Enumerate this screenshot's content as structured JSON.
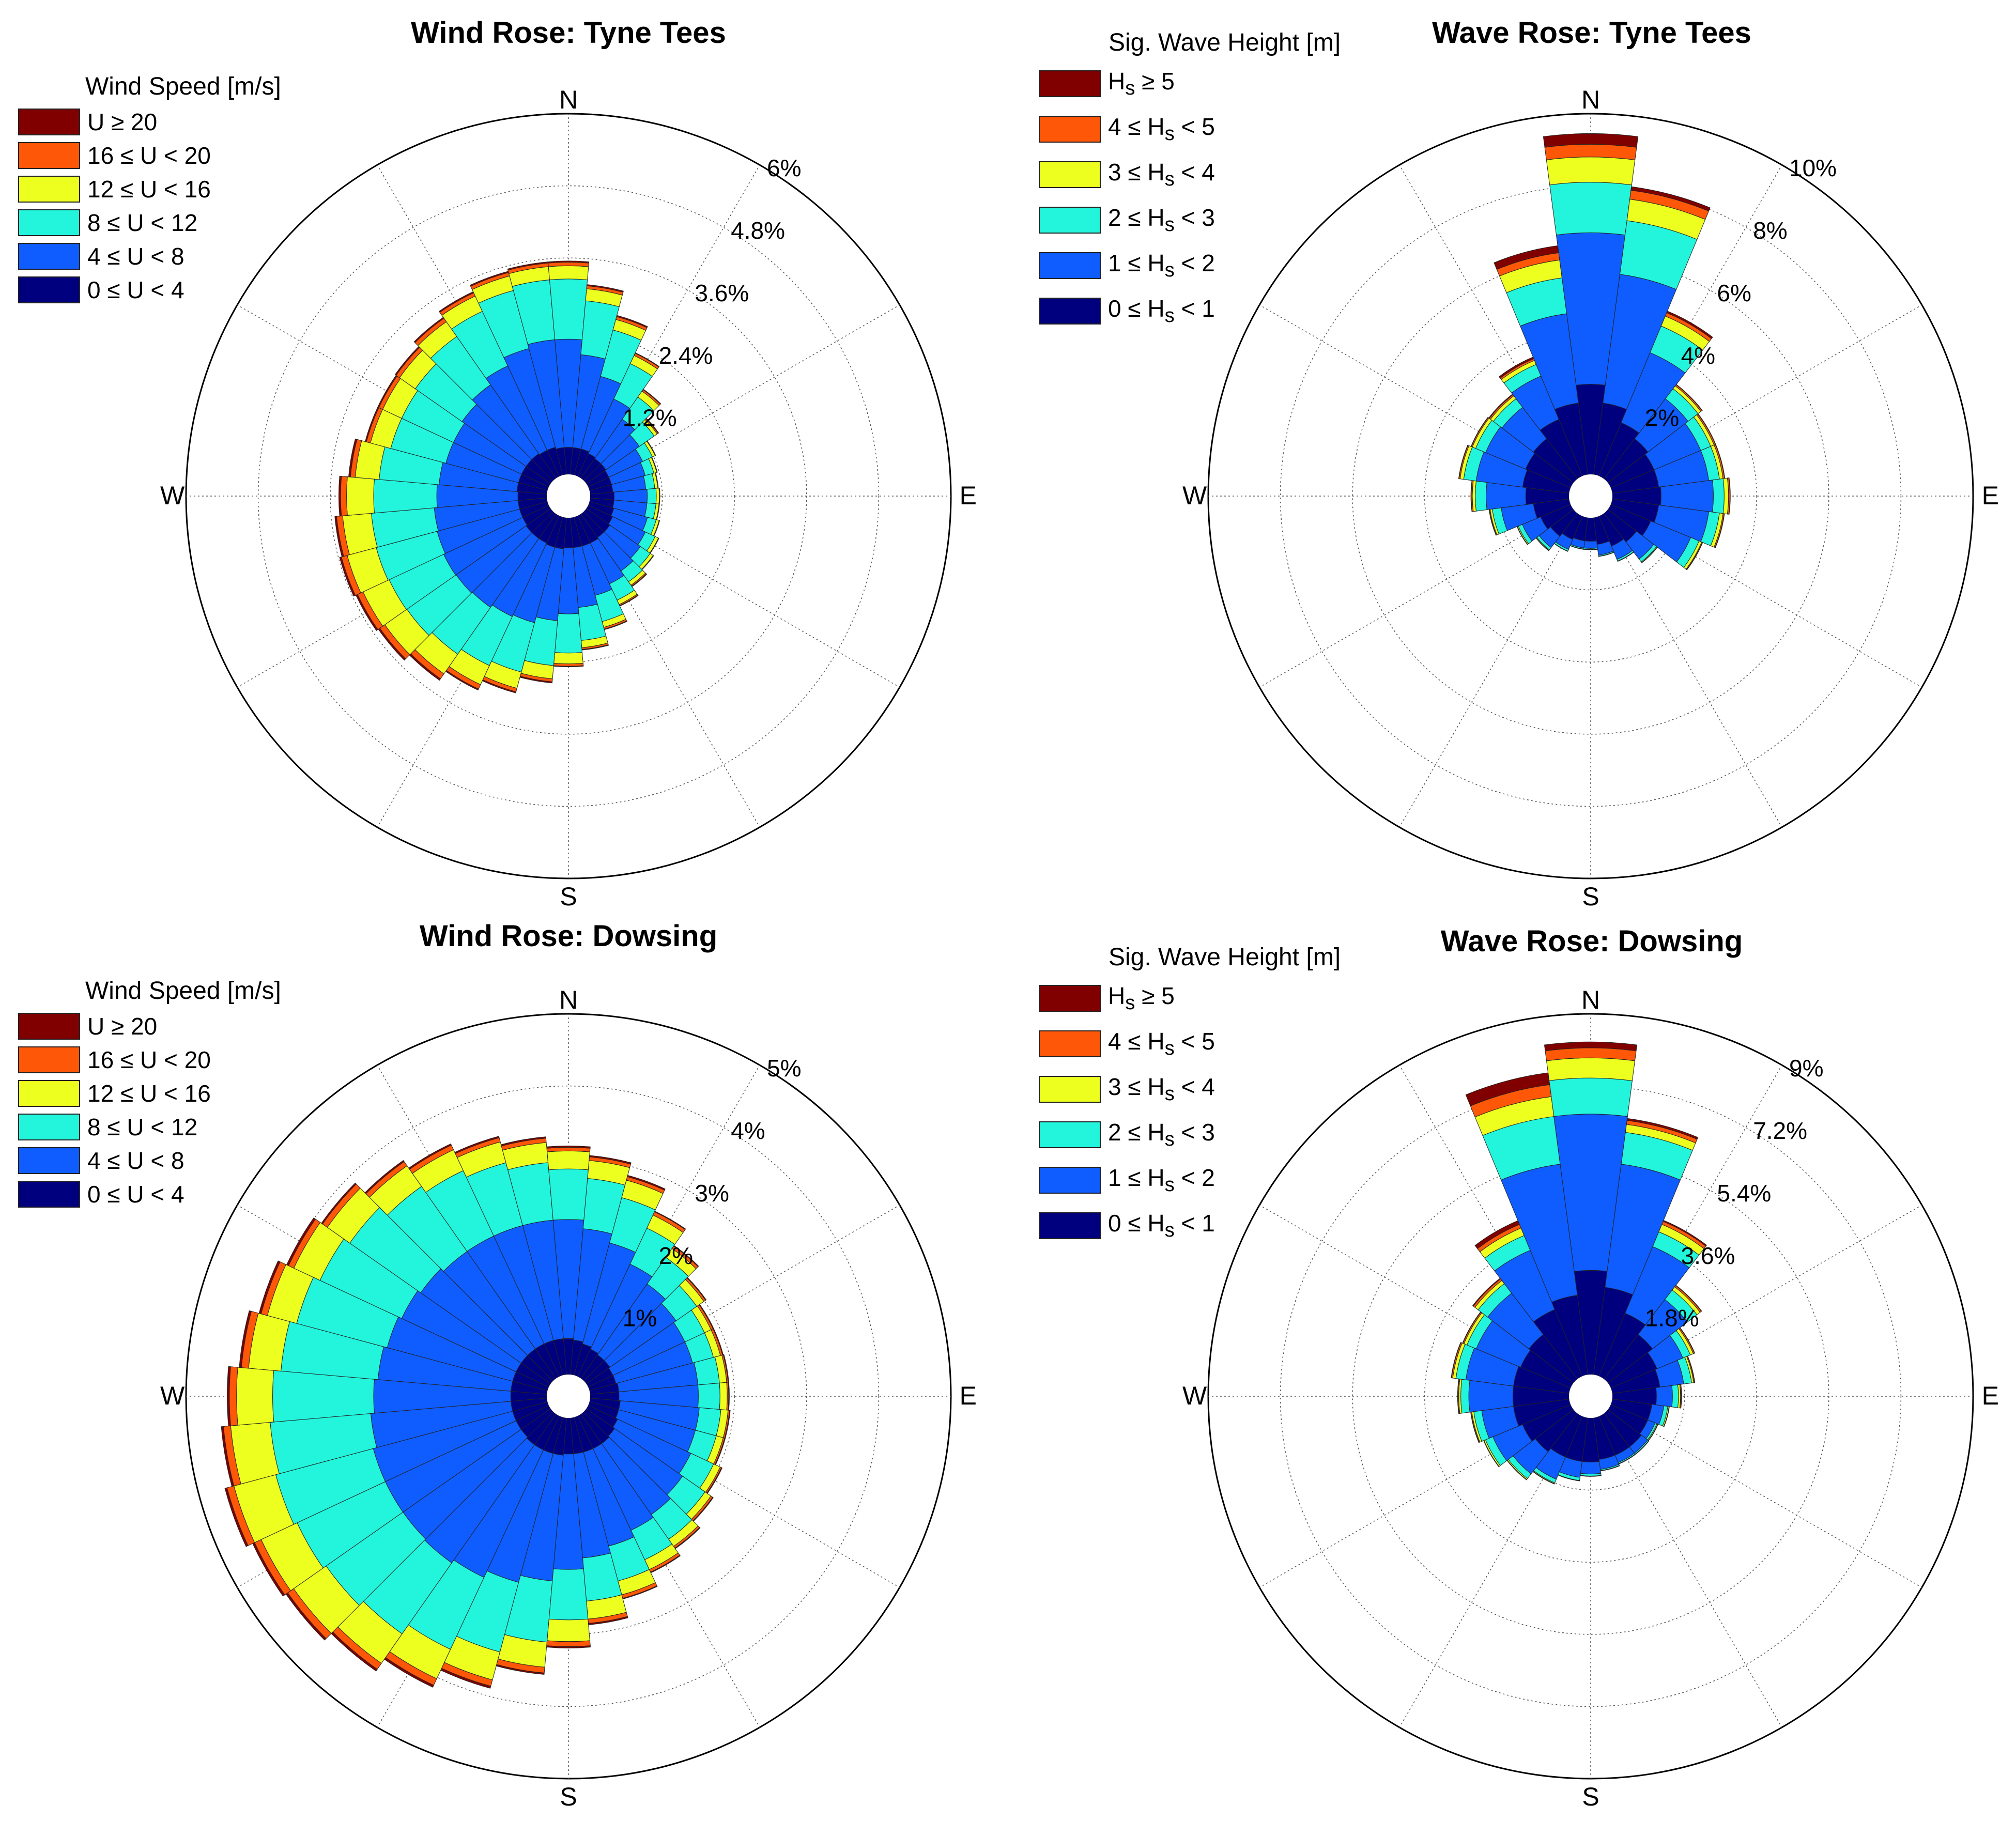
{
  "colors": {
    "bin0": "#00007f",
    "bin1": "#0f5cff",
    "bin2": "#22f5dc",
    "bin3": "#ecff1f",
    "bin4": "#ff5708",
    "bin5": "#800000"
  },
  "chart_data": [
    {
      "type": "wind_rose",
      "title": "Wind Rose: Tyne Tees",
      "legend_title": "Wind Speed [m/s]",
      "legend": [
        "U ≥ 20",
        "16 ≤ U < 20",
        "12 ≤ U < 16",
        "8 ≤ U < 12",
        "4 ≤ U < 8",
        "0 ≤ U < 4"
      ],
      "directions": [
        "N",
        "E",
        "S",
        "W"
      ],
      "ring_labels": [
        "1.2%",
        "2.4%",
        "3.6%",
        "4.8%",
        "6%"
      ],
      "rmax": 6,
      "sectors": 36,
      "series": [
        {
          "name": "0 ≤ U < 4",
          "values": [
            0.45,
            0.45,
            0.45,
            0.42,
            0.4,
            0.4,
            0.38,
            0.38,
            0.38,
            0.4,
            0.4,
            0.42,
            0.45,
            0.48,
            0.48,
            0.5,
            0.5,
            0.5,
            0.5,
            0.52,
            0.52,
            0.5,
            0.5,
            0.5,
            0.48,
            0.48,
            0.48,
            0.48,
            0.5,
            0.5,
            0.5,
            0.5,
            0.5,
            0.48,
            0.48,
            0.45
          ]
        },
        {
          "name": "4 ≤ U < 8",
          "values": [
            1.8,
            1.55,
            1.25,
            1.0,
            0.8,
            0.68,
            0.62,
            0.58,
            0.55,
            0.55,
            0.55,
            0.58,
            0.6,
            0.62,
            0.68,
            0.75,
            0.85,
            1.0,
            1.1,
            1.2,
            1.3,
            1.35,
            1.4,
            1.42,
            1.45,
            1.42,
            1.4,
            1.35,
            1.3,
            1.25,
            1.25,
            1.3,
            1.4,
            1.55,
            1.7,
            1.8
          ]
        },
        {
          "name": "8 ≤ U < 12",
          "values": [
            1.0,
            0.9,
            0.8,
            0.65,
            0.45,
            0.3,
            0.18,
            0.15,
            0.15,
            0.15,
            0.15,
            0.15,
            0.18,
            0.2,
            0.22,
            0.3,
            0.45,
            0.55,
            0.65,
            0.75,
            0.85,
            0.9,
            0.95,
            1.0,
            1.0,
            1.05,
            1.05,
            1.05,
            1.0,
            0.95,
            0.95,
            0.95,
            0.98,
            1.0,
            1.0,
            1.0
          ]
        },
        {
          "name": "12 ≤ U < 16",
          "values": [
            0.22,
            0.2,
            0.18,
            0.15,
            0.12,
            0.06,
            0.05,
            0.05,
            0.05,
            0.05,
            0.05,
            0.05,
            0.06,
            0.06,
            0.07,
            0.08,
            0.1,
            0.12,
            0.18,
            0.22,
            0.28,
            0.35,
            0.4,
            0.45,
            0.48,
            0.5,
            0.48,
            0.45,
            0.4,
            0.35,
            0.35,
            0.32,
            0.3,
            0.28,
            0.25,
            0.22
          ]
        },
        {
          "name": "16 ≤ U < 20",
          "values": [
            0.06,
            0.05,
            0.05,
            0.04,
            0.03,
            0.02,
            0.01,
            0.01,
            0.01,
            0.01,
            0.01,
            0.01,
            0.01,
            0.01,
            0.02,
            0.02,
            0.03,
            0.03,
            0.04,
            0.05,
            0.06,
            0.08,
            0.1,
            0.1,
            0.1,
            0.1,
            0.1,
            0.1,
            0.08,
            0.07,
            0.07,
            0.07,
            0.07,
            0.06,
            0.06,
            0.06
          ]
        },
        {
          "name": "U ≥ 20",
          "values": [
            0.02,
            0.02,
            0.02,
            0.01,
            0.01,
            0.01,
            0.0,
            0.0,
            0.0,
            0.0,
            0.0,
            0.0,
            0.0,
            0.0,
            0.01,
            0.01,
            0.01,
            0.01,
            0.01,
            0.02,
            0.02,
            0.02,
            0.03,
            0.03,
            0.03,
            0.03,
            0.03,
            0.03,
            0.03,
            0.02,
            0.02,
            0.02,
            0.02,
            0.02,
            0.02,
            0.02
          ]
        }
      ]
    },
    {
      "type": "wave_rose",
      "title": "Wave Rose: Tyne Tees",
      "legend_title": "Sig. Wave Height [m]",
      "legend": [
        {
          "pre": "H",
          "sub": "s",
          "post": " ≥ 5"
        },
        {
          "pre": "4 ≤ H",
          "sub": "s",
          "post": " < 5"
        },
        {
          "pre": "3 ≤ H",
          "sub": "s",
          "post": " < 4"
        },
        {
          "pre": "2 ≤ H",
          "sub": "s",
          "post": " < 3"
        },
        {
          "pre": "1 ≤ H",
          "sub": "s",
          "post": " < 2"
        },
        {
          "pre": "0 ≤ H",
          "sub": "s",
          "post": " < 1"
        }
      ],
      "directions": [
        "N",
        "E",
        "S",
        "W"
      ],
      "ring_labels": [
        "2%",
        "4%",
        "6%",
        "8%",
        "10%"
      ],
      "rmax": 10,
      "sectors": 24,
      "series": [
        {
          "name": "0 ≤ Hs < 1",
          "values": [
            2.5,
            2.0,
            1.6,
            1.4,
            1.3,
            1.3,
            1.35,
            1.3,
            1.2,
            1.0,
            0.9,
            0.75,
            0.65,
            0.65,
            0.7,
            0.8,
            0.9,
            1.0,
            1.2,
            1.3,
            1.35,
            1.4,
            1.7,
            2.0
          ]
        },
        {
          "name": "1 ≤ Hs < 2",
          "values": [
            4.2,
            3.6,
            2.1,
            1.4,
            1.4,
            1.4,
            1.45,
            1.4,
            1.2,
            0.6,
            0.4,
            0.3,
            0.2,
            0.2,
            0.3,
            0.4,
            0.55,
            0.9,
            1.1,
            1.3,
            1.2,
            1.1,
            1.3,
            2.5
          ]
        },
        {
          "name": "2 ≤ Hs < 3",
          "values": [
            1.4,
            1.5,
            0.8,
            0.35,
            0.3,
            0.3,
            0.3,
            0.3,
            0.25,
            0.1,
            0.05,
            0.03,
            0.03,
            0.03,
            0.05,
            0.08,
            0.12,
            0.25,
            0.3,
            0.35,
            0.3,
            0.3,
            0.35,
            1.0
          ]
        },
        {
          "name": "3 ≤ Hs < 4",
          "values": [
            0.7,
            0.6,
            0.3,
            0.1,
            0.1,
            0.1,
            0.12,
            0.1,
            0.08,
            0.02,
            0.01,
            0.01,
            0.01,
            0.01,
            0.01,
            0.02,
            0.03,
            0.06,
            0.08,
            0.1,
            0.1,
            0.1,
            0.12,
            0.5
          ]
        },
        {
          "name": "4 ≤ Hs < 5",
          "values": [
            0.35,
            0.25,
            0.1,
            0.04,
            0.04,
            0.04,
            0.04,
            0.03,
            0.02,
            0.01,
            0.0,
            0.0,
            0.0,
            0.0,
            0.0,
            0.01,
            0.01,
            0.02,
            0.03,
            0.03,
            0.03,
            0.04,
            0.05,
            0.2
          ]
        },
        {
          "name": "Hs ≥ 5",
          "values": [
            0.3,
            0.1,
            0.05,
            0.01,
            0.01,
            0.01,
            0.01,
            0.01,
            0.01,
            0.0,
            0.0,
            0.0,
            0.0,
            0.0,
            0.0,
            0.0,
            0.0,
            0.01,
            0.01,
            0.01,
            0.01,
            0.02,
            0.05,
            0.2
          ]
        }
      ]
    },
    {
      "type": "wind_rose",
      "title": "Wind Rose: Dowsing",
      "legend_title": "Wind Speed [m/s]",
      "legend": [
        "U ≥ 20",
        "16 ≤ U < 20",
        "12 ≤ U < 16",
        "8 ≤ U < 12",
        "4 ≤ U < 8",
        "0 ≤ U < 4"
      ],
      "directions": [
        "N",
        "E",
        "S",
        "W"
      ],
      "ring_labels": [
        "1%",
        "2%",
        "3%",
        "4%",
        "5%"
      ],
      "rmax": 5,
      "sectors": 36,
      "series": [
        {
          "name": "0 ≤ U < 4",
          "values": [
            0.5,
            0.48,
            0.45,
            0.42,
            0.4,
            0.4,
            0.38,
            0.38,
            0.4,
            0.4,
            0.42,
            0.42,
            0.45,
            0.48,
            0.5,
            0.5,
            0.5,
            0.5,
            0.5,
            0.52,
            0.52,
            0.52,
            0.52,
            0.5,
            0.5,
            0.5,
            0.5,
            0.5,
            0.5,
            0.5,
            0.5,
            0.5,
            0.5,
            0.5,
            0.5,
            0.5
          ]
        },
        {
          "name": "4 ≤ U < 8",
          "values": [
            1.65,
            1.55,
            1.45,
            1.3,
            1.2,
            1.12,
            1.1,
            1.1,
            1.1,
            1.1,
            1.1,
            1.1,
            1.12,
            1.15,
            1.2,
            1.25,
            1.35,
            1.45,
            1.6,
            1.75,
            1.85,
            1.95,
            2.0,
            2.0,
            2.0,
            2.0,
            1.95,
            1.9,
            1.85,
            1.8,
            1.75,
            1.7,
            1.65,
            1.65,
            1.65,
            1.65
          ]
        },
        {
          "name": "8 ≤ U < 12",
          "values": [
            0.7,
            0.7,
            0.65,
            0.55,
            0.45,
            0.35,
            0.3,
            0.3,
            0.3,
            0.3,
            0.3,
            0.3,
            0.35,
            0.38,
            0.42,
            0.45,
            0.5,
            0.6,
            0.7,
            0.85,
            1.0,
            1.1,
            1.2,
            1.3,
            1.35,
            1.4,
            1.4,
            1.4,
            1.35,
            1.3,
            1.25,
            1.2,
            1.1,
            1.0,
            0.9,
            0.8
          ]
        },
        {
          "name": "12 ≤ U < 16",
          "values": [
            0.25,
            0.25,
            0.25,
            0.2,
            0.15,
            0.12,
            0.1,
            0.1,
            0.1,
            0.1,
            0.1,
            0.1,
            0.1,
            0.1,
            0.12,
            0.15,
            0.2,
            0.25,
            0.3,
            0.35,
            0.4,
            0.45,
            0.5,
            0.55,
            0.55,
            0.6,
            0.55,
            0.5,
            0.45,
            0.42,
            0.4,
            0.38,
            0.35,
            0.32,
            0.3,
            0.28
          ]
        },
        {
          "name": "16 ≤ U < 20",
          "values": [
            0.05,
            0.05,
            0.05,
            0.05,
            0.04,
            0.03,
            0.03,
            0.03,
            0.02,
            0.02,
            0.02,
            0.02,
            0.02,
            0.03,
            0.03,
            0.04,
            0.05,
            0.06,
            0.07,
            0.08,
            0.09,
            0.1,
            0.1,
            0.1,
            0.1,
            0.1,
            0.1,
            0.1,
            0.1,
            0.09,
            0.08,
            0.08,
            0.07,
            0.07,
            0.06,
            0.06
          ]
        },
        {
          "name": "U ≥ 20",
          "values": [
            0.02,
            0.02,
            0.02,
            0.01,
            0.01,
            0.01,
            0.01,
            0.01,
            0.01,
            0.01,
            0.01,
            0.01,
            0.01,
            0.01,
            0.01,
            0.01,
            0.01,
            0.02,
            0.02,
            0.02,
            0.03,
            0.03,
            0.03,
            0.03,
            0.03,
            0.03,
            0.03,
            0.03,
            0.03,
            0.03,
            0.03,
            0.02,
            0.02,
            0.02,
            0.02,
            0.02
          ]
        }
      ]
    },
    {
      "type": "wave_rose",
      "title": "Wave Rose: Dowsing",
      "legend_title": "Sig. Wave Height [m]",
      "legend": [
        {
          "pre": "H",
          "sub": "s",
          "post": " ≥ 5"
        },
        {
          "pre": "4 ≤ H",
          "sub": "s",
          "post": " < 5"
        },
        {
          "pre": "3 ≤ H",
          "sub": "s",
          "post": " < 4"
        },
        {
          "pre": "2 ≤ H",
          "sub": "s",
          "post": " < 3"
        },
        {
          "pre": "1 ≤ H",
          "sub": "s",
          "post": " < 2"
        },
        {
          "pre": "0 ≤ H",
          "sub": "s",
          "post": " < 1"
        }
      ],
      "directions": [
        "N",
        "E",
        "S",
        "W"
      ],
      "ring_labels": [
        "1.8%",
        "3.6%",
        "5.4%",
        "7.2%",
        "9%"
      ],
      "rmax": 9,
      "sectors": 24,
      "series": [
        {
          "name": "0 ≤ Hs < 1",
          "values": [
            2.6,
            2.2,
            1.7,
            1.4,
            1.25,
            1.2,
            1.1,
            1.0,
            1.0,
            1.05,
            1.05,
            1.05,
            1.1,
            1.1,
            1.1,
            1.2,
            1.3,
            1.4,
            1.4,
            1.4,
            1.35,
            1.4,
            1.8,
            2.0
          ]
        },
        {
          "name": "1 ≤ Hs < 2",
          "values": [
            3.9,
            3.1,
            1.8,
            1.1,
            0.7,
            0.6,
            0.4,
            0.3,
            0.2,
            0.2,
            0.2,
            0.25,
            0.3,
            0.4,
            0.6,
            0.7,
            0.8,
            0.8,
            1.1,
            1.2,
            1.2,
            1.3,
            1.6,
            3.3
          ]
        },
        {
          "name": "2 ≤ Hs < 3",
          "values": [
            0.9,
            0.8,
            0.4,
            0.3,
            0.2,
            0.2,
            0.15,
            0.1,
            0.05,
            0.03,
            0.03,
            0.03,
            0.05,
            0.08,
            0.1,
            0.15,
            0.2,
            0.2,
            0.2,
            0.25,
            0.25,
            0.3,
            0.4,
            1.2
          ]
        },
        {
          "name": "3 ≤ Hs < 4",
          "values": [
            0.5,
            0.2,
            0.2,
            0.1,
            0.08,
            0.05,
            0.05,
            0.03,
            0.02,
            0.01,
            0.01,
            0.01,
            0.01,
            0.01,
            0.02,
            0.03,
            0.04,
            0.05,
            0.05,
            0.08,
            0.08,
            0.1,
            0.2,
            0.5
          ]
        },
        {
          "name": "4 ≤ Hs < 5",
          "values": [
            0.25,
            0.1,
            0.08,
            0.04,
            0.03,
            0.02,
            0.02,
            0.01,
            0.01,
            0.0,
            0.0,
            0.0,
            0.0,
            0.0,
            0.01,
            0.01,
            0.01,
            0.02,
            0.02,
            0.03,
            0.03,
            0.05,
            0.1,
            0.3
          ]
        },
        {
          "name": "Hs ≥ 5",
          "values": [
            0.15,
            0.05,
            0.03,
            0.01,
            0.01,
            0.01,
            0.01,
            0.0,
            0.0,
            0.0,
            0.0,
            0.0,
            0.0,
            0.0,
            0.0,
            0.0,
            0.0,
            0.01,
            0.01,
            0.01,
            0.01,
            0.02,
            0.1,
            0.3
          ]
        }
      ]
    }
  ]
}
